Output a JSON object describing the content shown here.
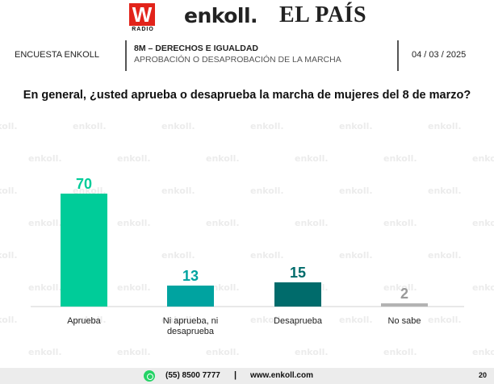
{
  "logos": {
    "radio_mark": "W",
    "radio_sub": "RADIO",
    "enkoll": "enkoll.",
    "pais": "EL PAÍS"
  },
  "header": {
    "left_label": "ENCUESTA ENKOLL",
    "title": "8M – DERECHOS E IGUALDAD",
    "subtitle": "APROBACIÓN O DESAPROBACIÓN DE LA MARCHA",
    "date": "04 / 03 / 2025"
  },
  "question": "En general, ¿usted aprueba o desaprueba la marcha de mujeres del 8 de marzo?",
  "watermark_text": "enkoll.",
  "chart_data": {
    "type": "bar",
    "title": "",
    "xlabel": "",
    "ylabel": "",
    "ylim": [
      0,
      100
    ],
    "grid": false,
    "legend": "none",
    "categories": [
      "Aprueba",
      "Ni aprueba, ni desaprueba",
      "Desaprueba",
      "No sabe"
    ],
    "category_lines": [
      [
        "Aprueba"
      ],
      [
        "Ni aprueba, ni",
        "desaprueba"
      ],
      [
        "Desaprueba"
      ],
      [
        "No sabe"
      ]
    ],
    "values": [
      70,
      13,
      15,
      2
    ],
    "value_labels": [
      "70",
      "13",
      "15",
      "2"
    ],
    "colors": [
      "#00cc99",
      "#00a3a0",
      "#006b6b",
      "#b3b3b3"
    ]
  },
  "footer": {
    "phone": "(55) 8500 7777",
    "separator": "|",
    "website": "www.enkoll.com",
    "page": "20"
  }
}
